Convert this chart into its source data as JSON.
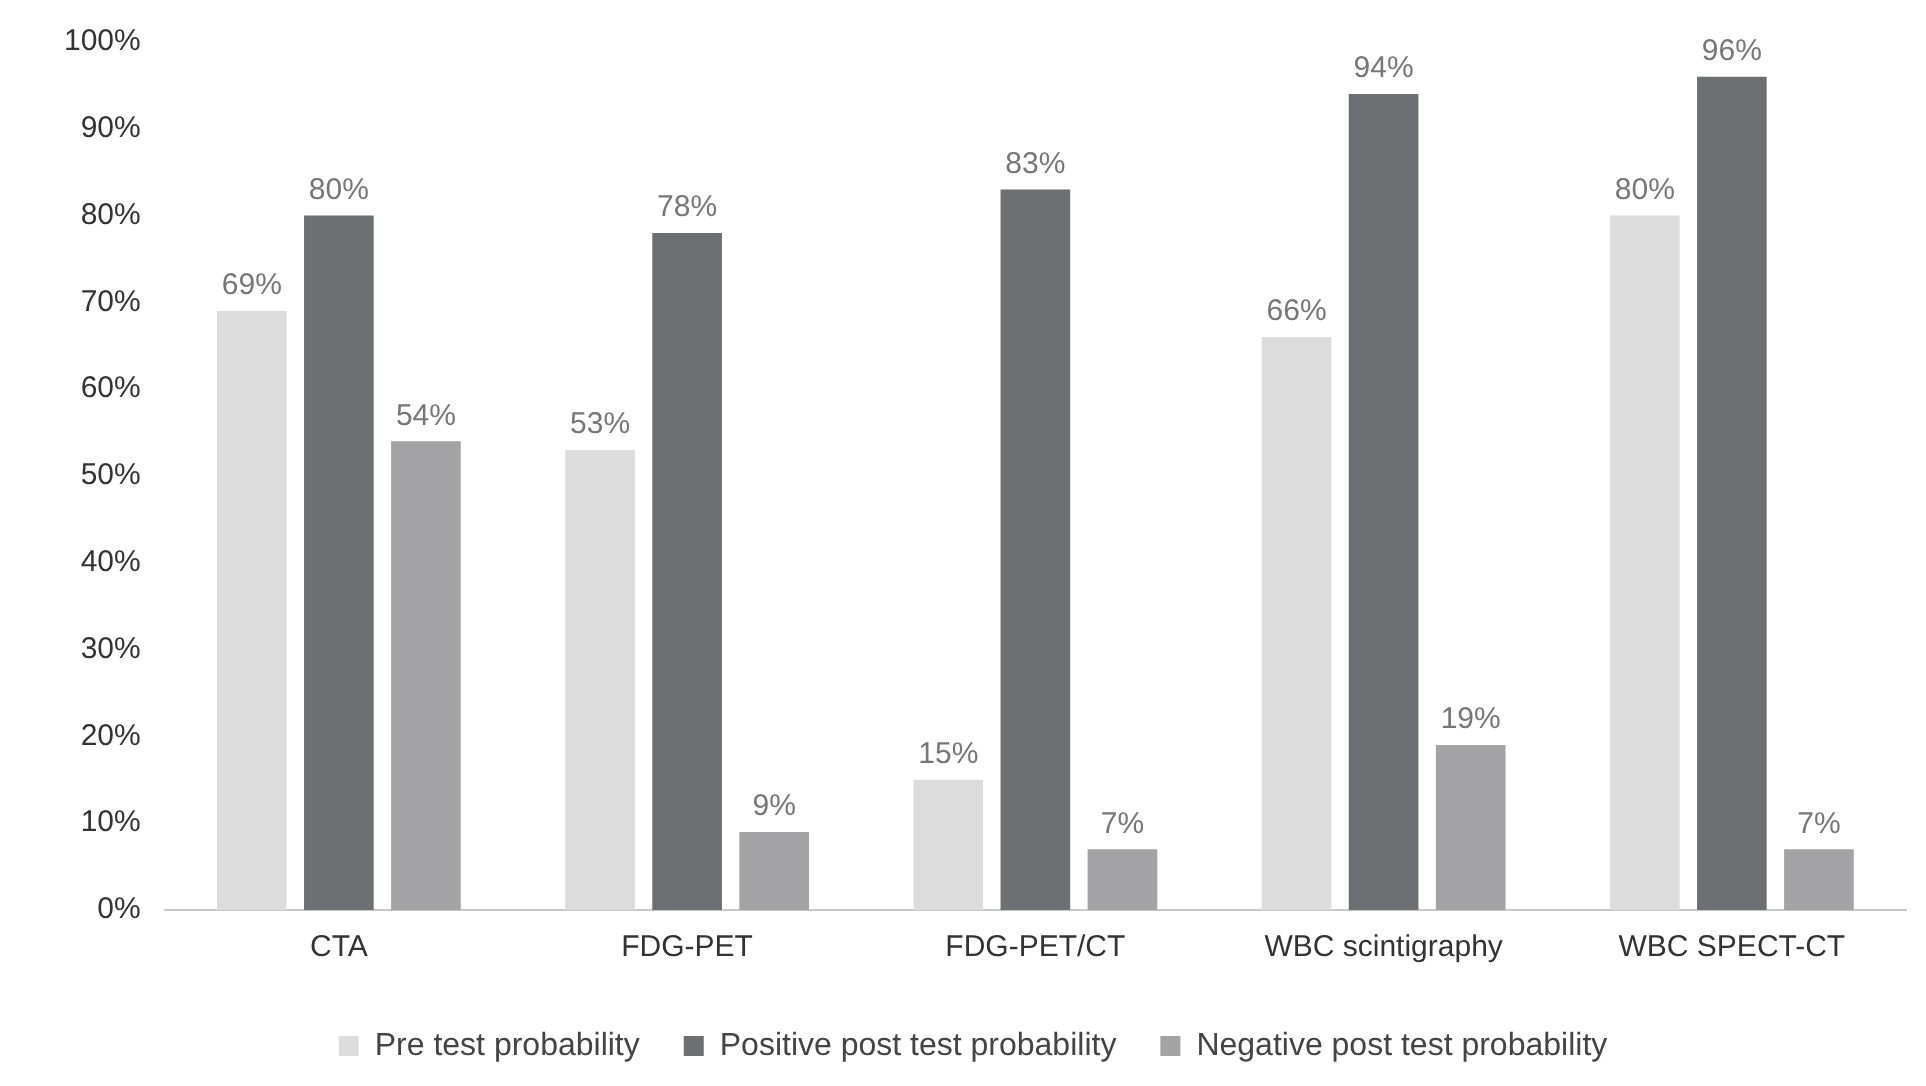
{
  "chart_data": {
    "type": "bar",
    "categories": [
      "CTA",
      "FDG-PET",
      "FDG-PET/CT",
      "WBC scintigraphy",
      "WBC SPECT-CT"
    ],
    "series": [
      {
        "name": "Pre test probability",
        "color": "#dcdcdc",
        "values": [
          69,
          53,
          15,
          66,
          80
        ],
        "value_labels": [
          "69%",
          "53%",
          "15%",
          "66%",
          "80%"
        ]
      },
      {
        "name": "Positive post test probability",
        "color": "#6e6f72",
        "values": [
          80,
          78,
          83,
          94,
          96
        ],
        "value_labels": [
          "80%",
          "78%",
          "83%",
          "94%",
          "96%"
        ]
      },
      {
        "name": "Negative post test probability",
        "color": "#a3a3a5",
        "values": [
          54,
          9,
          7,
          19,
          7
        ],
        "value_labels": [
          "54%",
          "9%",
          "7%",
          "19%",
          "7%"
        ]
      }
    ],
    "ylim": [
      0,
      100
    ],
    "yticks": [
      {
        "value": 0,
        "label": "0%"
      },
      {
        "value": 10,
        "label": "10%"
      },
      {
        "value": 20,
        "label": "20%"
      },
      {
        "value": 30,
        "label": "30%"
      },
      {
        "value": 40,
        "label": "40%"
      },
      {
        "value": 50,
        "label": "50%"
      },
      {
        "value": 60,
        "label": "60%"
      },
      {
        "value": 70,
        "label": "70%"
      },
      {
        "value": 80,
        "label": "80%"
      },
      {
        "value": 90,
        "label": "90%"
      },
      {
        "value": 100,
        "label": "100%"
      }
    ],
    "grid": false,
    "legend": "bottom"
  }
}
